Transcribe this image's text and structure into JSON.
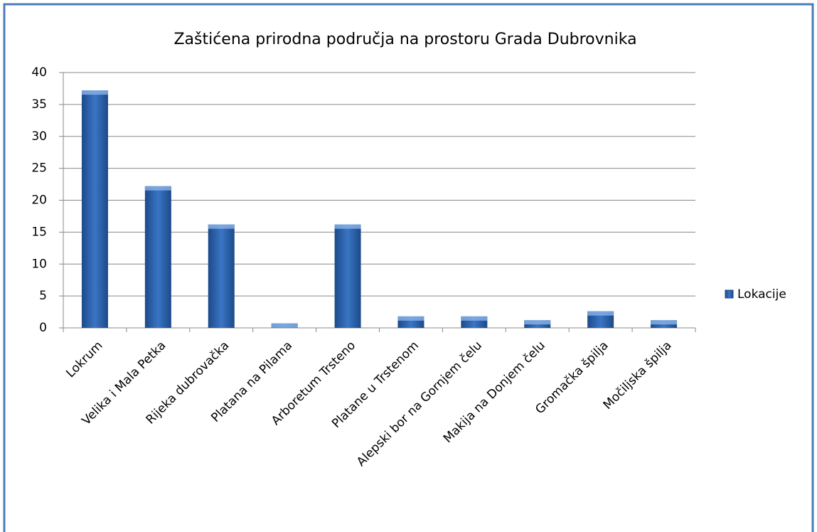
{
  "chart_data": {
    "type": "bar",
    "title": "Zaštićena prirodna područja na prostoru Grada Dubrovnika",
    "categories": [
      "Lokrum",
      "Velika i Mala Petka",
      "Rijeka dubrovačka",
      "Platana na Pilama",
      "Arboretum Trsteno",
      "Platane u Trstenom",
      "Alepski bor na Gornjem čelu",
      "Makija na Donjem čelu",
      "Gromačka špilja",
      "Močiljska špilja"
    ],
    "series": [
      {
        "name": "Lokacije",
        "color": "#3a75c4",
        "values": [
          37.2,
          22.2,
          16.2,
          0.7,
          16.2,
          1.8,
          1.8,
          1.2,
          2.6,
          1.2
        ]
      }
    ],
    "ylim": [
      0,
      40
    ],
    "yticks": [
      0,
      5,
      10,
      15,
      20,
      25,
      30,
      35,
      40
    ],
    "grid": true,
    "legend": "right"
  }
}
